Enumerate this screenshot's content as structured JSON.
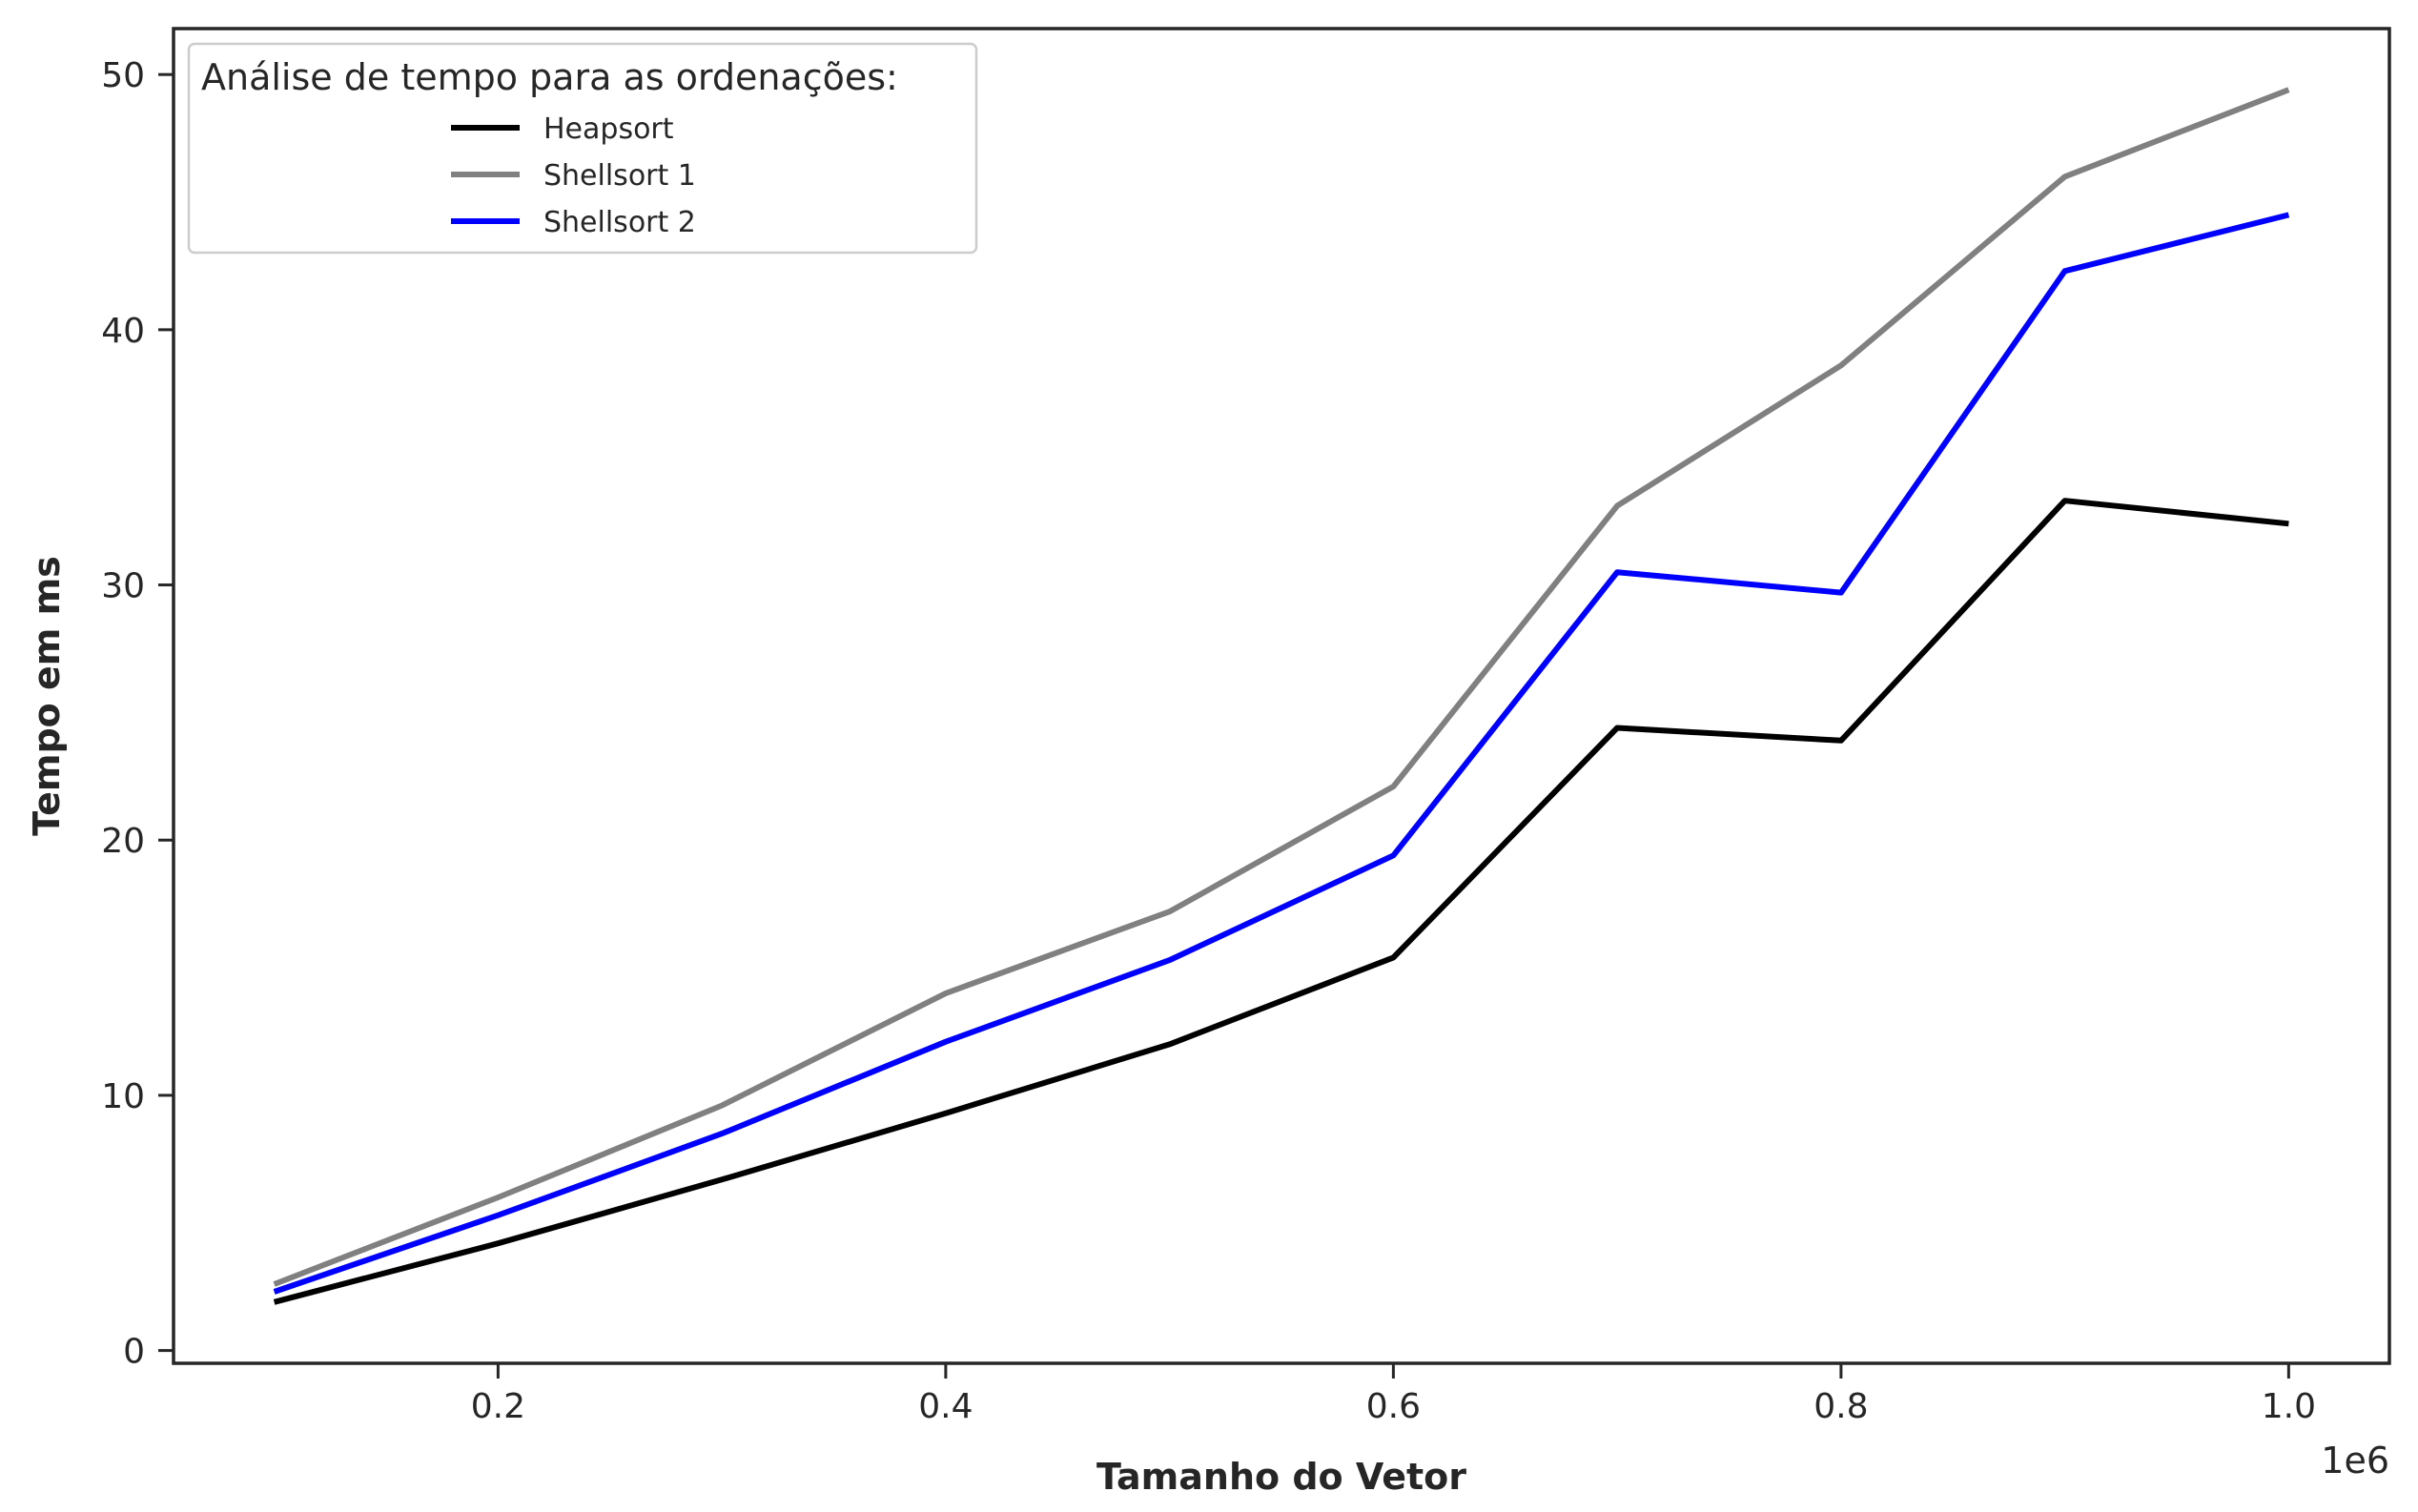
{
  "chart_data": {
    "type": "line",
    "xlabel": "Tamanho do Vetor",
    "ylabel": "Tempo em ms",
    "x_offset_label": "1e6",
    "x": [
      0.1,
      0.2,
      0.3,
      0.4,
      0.5,
      0.6,
      0.7,
      0.8,
      0.9,
      1.0
    ],
    "xlim": [
      0.055,
      1.045
    ],
    "ylim": [
      -0.5,
      51.8
    ],
    "xticks": [
      0.2,
      0.4,
      0.6,
      0.8,
      1.0
    ],
    "xtick_labels": [
      "0.2",
      "0.4",
      "0.6",
      "0.8",
      "1.0"
    ],
    "yticks": [
      0,
      10,
      20,
      30,
      40,
      50
    ],
    "ytick_labels": [
      "0",
      "10",
      "20",
      "30",
      "40",
      "50"
    ],
    "grid": false,
    "legend": {
      "title": "Análise de tempo para as ordenações:",
      "placement": "top-left"
    },
    "series": [
      {
        "name": "Heapsort",
        "color": "#000000",
        "values": [
          1.9,
          4.2,
          6.7,
          9.3,
          12.0,
          15.4,
          24.4,
          23.9,
          33.3,
          32.4
        ]
      },
      {
        "name": "Shellsort 1",
        "color": "#808080",
        "values": [
          2.6,
          6.0,
          9.6,
          14.0,
          17.2,
          22.1,
          33.1,
          38.6,
          46.0,
          49.4
        ]
      },
      {
        "name": "Shellsort 2",
        "color": "#0000ff",
        "values": [
          2.3,
          5.3,
          8.5,
          12.1,
          15.3,
          19.4,
          30.5,
          29.7,
          42.3,
          44.5
        ]
      }
    ]
  }
}
